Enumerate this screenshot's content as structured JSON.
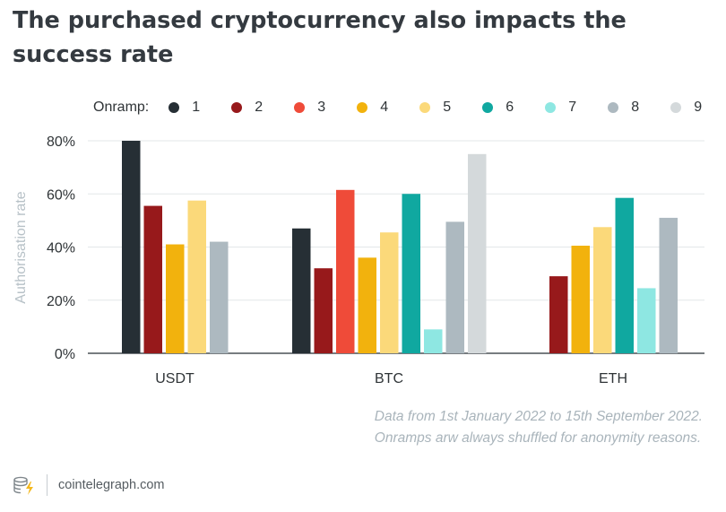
{
  "title": "The purchased cryptocurrency also impacts the success rate",
  "legend": {
    "label": "Onramp:",
    "items": [
      {
        "name": "1",
        "color": "#262f35"
      },
      {
        "name": "2",
        "color": "#97191b"
      },
      {
        "name": "3",
        "color": "#ef4b39"
      },
      {
        "name": "4",
        "color": "#f2b20d"
      },
      {
        "name": "5",
        "color": "#fbd97a"
      },
      {
        "name": "6",
        "color": "#10a8a0"
      },
      {
        "name": "7",
        "color": "#8ee7e2"
      },
      {
        "name": "8",
        "color": "#adb9c0"
      },
      {
        "name": "9",
        "color": "#d4d9db"
      }
    ]
  },
  "notes": [
    "Data from 1st January 2022 to 15th September 2022.",
    "Onramps arw always shuffled for anonymity reasons."
  ],
  "footer": {
    "site": "cointelegraph.com"
  },
  "chart_data": {
    "type": "bar",
    "categories": [
      "USDT",
      "BTC",
      "ETH"
    ],
    "ylabel": "Authorisation rate",
    "xlabel": "",
    "ylim": [
      0,
      80
    ],
    "yticks": [
      "0%",
      "20%",
      "40%",
      "60%",
      "80%"
    ],
    "grid": true,
    "legend_position": "top",
    "series": [
      {
        "name": "1",
        "values": [
          80,
          47,
          null
        ]
      },
      {
        "name": "2",
        "values": [
          55.5,
          32,
          29
        ]
      },
      {
        "name": "3",
        "values": [
          null,
          61.5,
          null
        ]
      },
      {
        "name": "4",
        "values": [
          41,
          36,
          40.5
        ]
      },
      {
        "name": "5",
        "values": [
          57.5,
          45.5,
          47.5
        ]
      },
      {
        "name": "6",
        "values": [
          null,
          60,
          58.5
        ]
      },
      {
        "name": "7",
        "values": [
          null,
          9,
          24.5
        ]
      },
      {
        "name": "8",
        "values": [
          42,
          49.5,
          51
        ]
      },
      {
        "name": "9",
        "values": [
          null,
          75,
          null
        ]
      }
    ]
  }
}
